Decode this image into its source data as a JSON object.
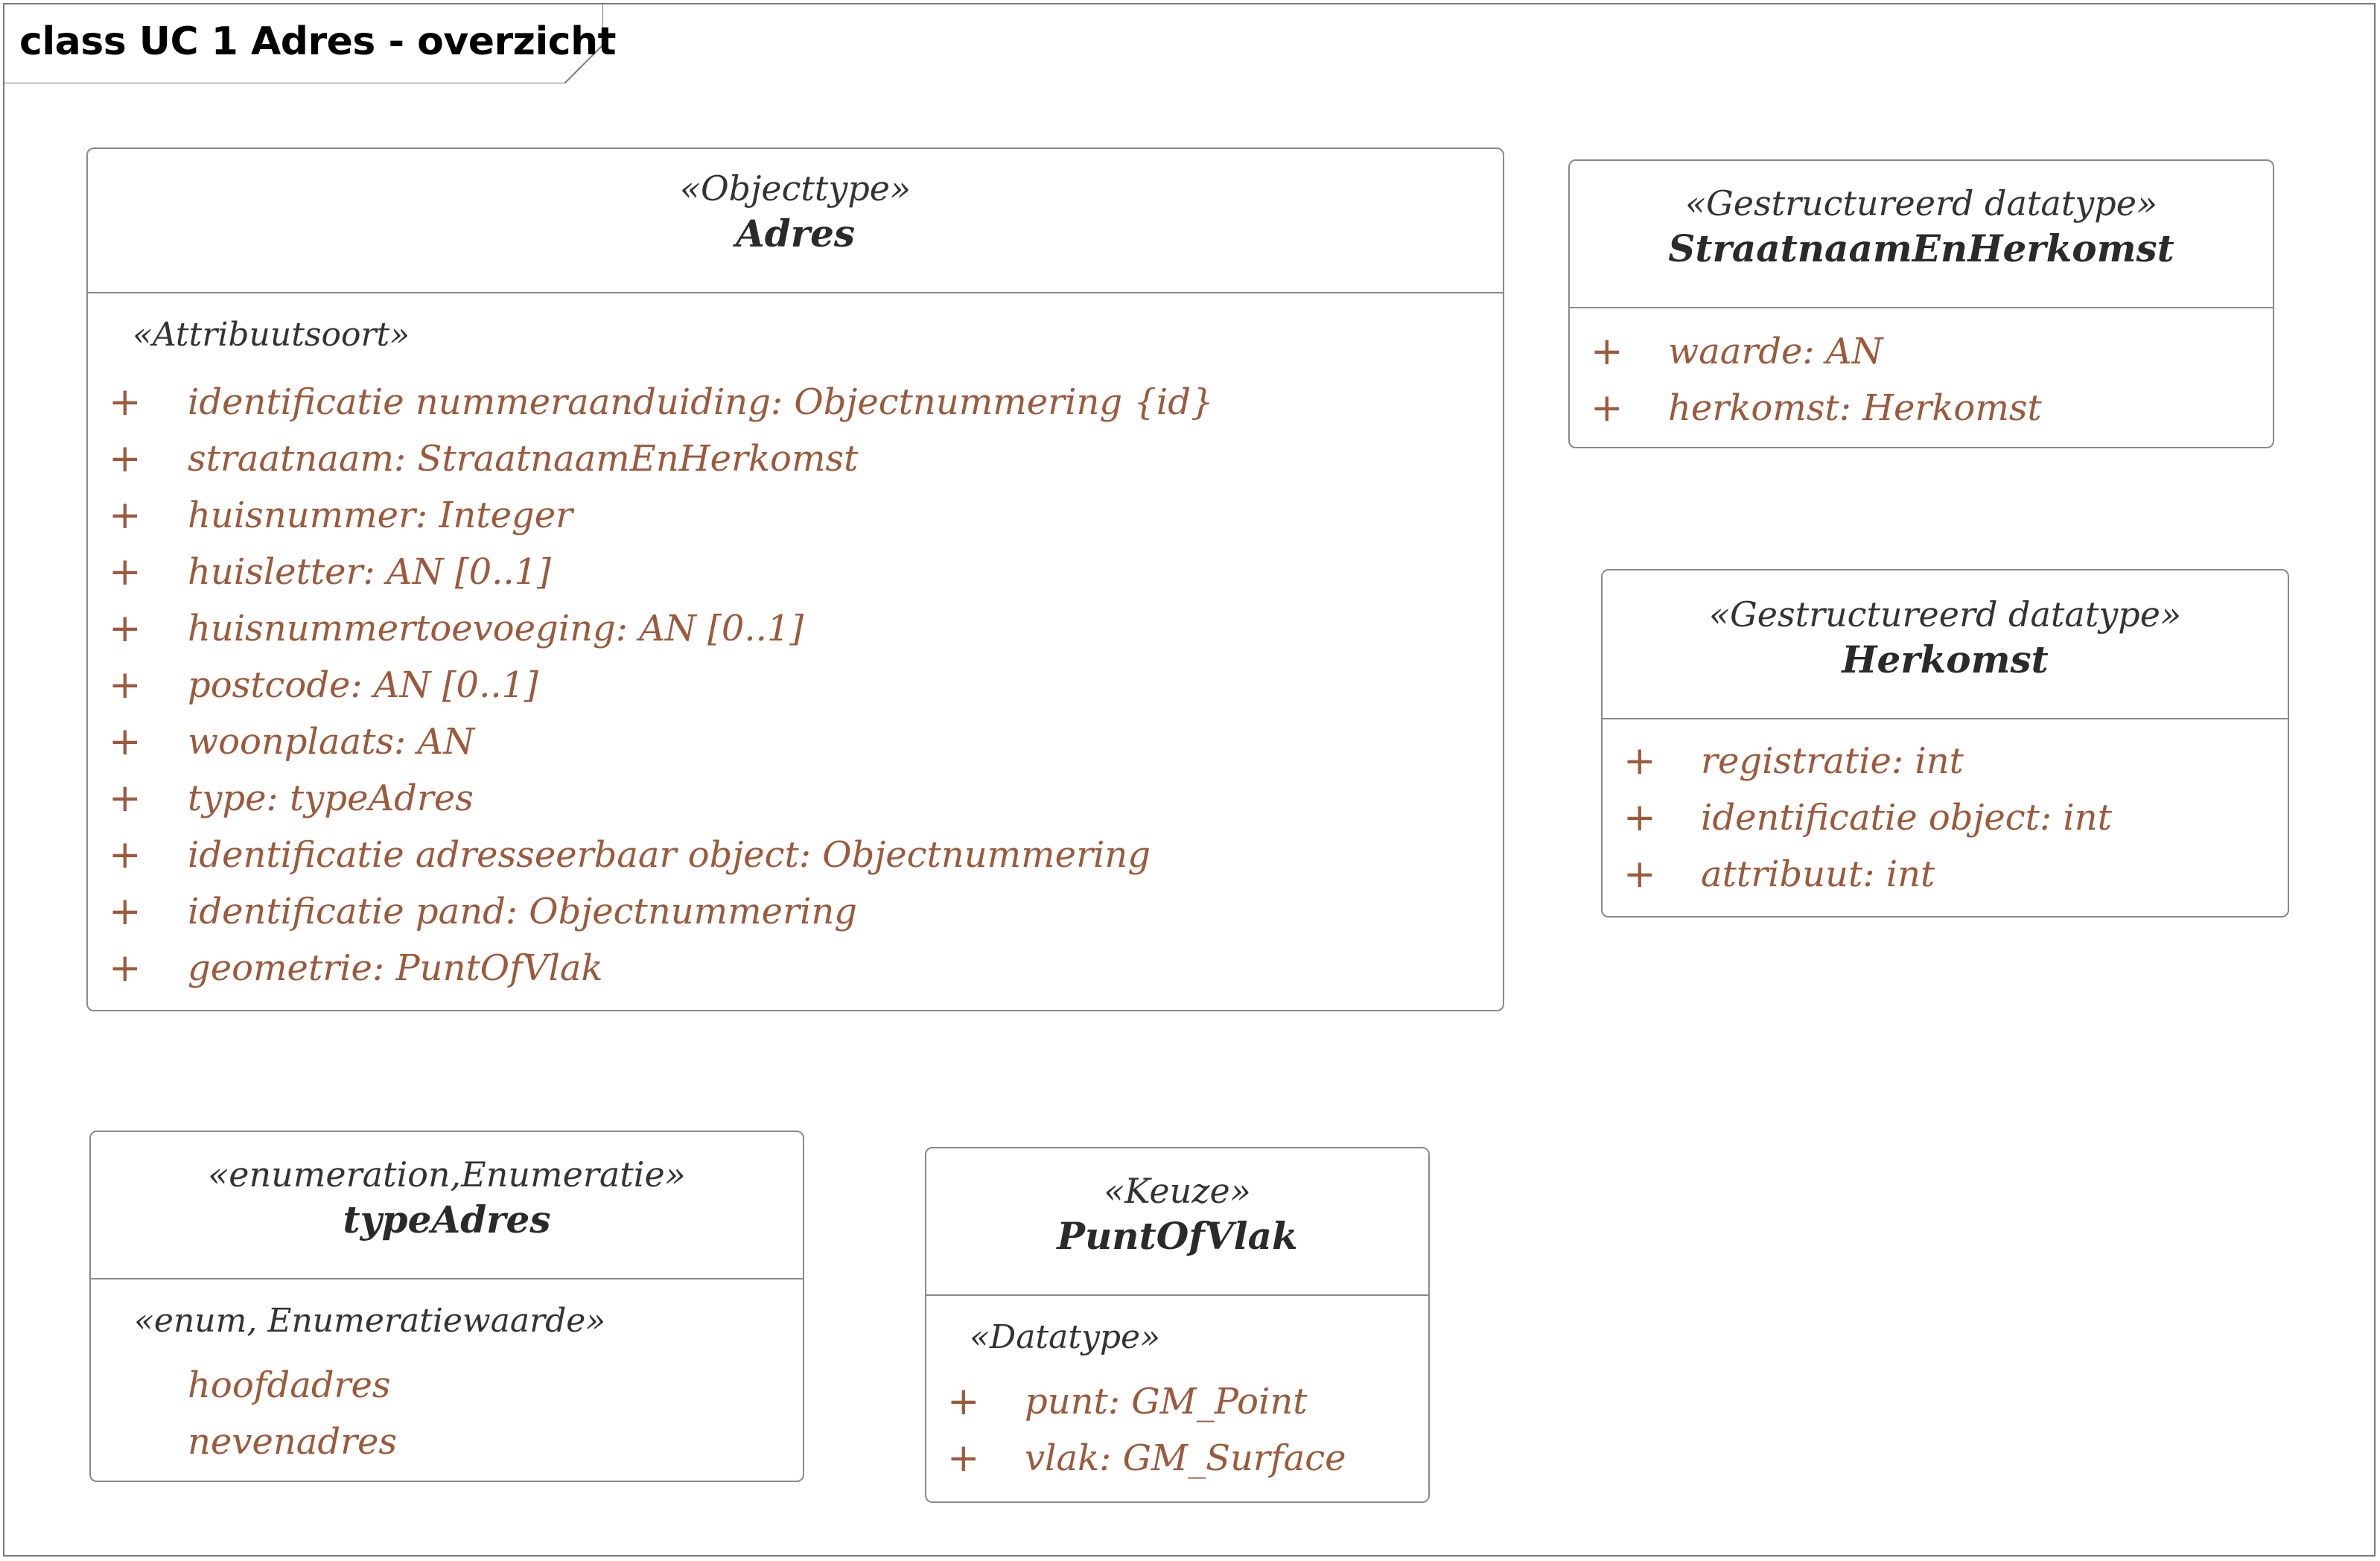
{
  "diagram": {
    "title": "class UC 1 Adres - overzicht"
  },
  "classes": {
    "adres": {
      "stereotype": "«Objecttype»",
      "name": "Adres",
      "section_stereotype": "«Attribuutsoort»",
      "attributes": [
        {
          "visibility": "+",
          "text": "identificatie nummeraanduiding: Objectnummering {id}"
        },
        {
          "visibility": "+",
          "text": "straatnaam: StraatnaamEnHerkomst"
        },
        {
          "visibility": "+",
          "text": "huisnummer: Integer"
        },
        {
          "visibility": "+",
          "text": "huisletter: AN [0..1]"
        },
        {
          "visibility": "+",
          "text": "huisnummertoevoeging: AN [0..1]"
        },
        {
          "visibility": "+",
          "text": "postcode: AN [0..1]"
        },
        {
          "visibility": "+",
          "text": "woonplaats: AN"
        },
        {
          "visibility": "+",
          "text": "type: typeAdres"
        },
        {
          "visibility": "+",
          "text": "identificatie adresseerbaar object: Objectnummering"
        },
        {
          "visibility": "+",
          "text": "identificatie pand: Objectnummering"
        },
        {
          "visibility": "+",
          "text": "geometrie: PuntOfVlak"
        }
      ]
    },
    "straatnaam_en_herkomst": {
      "stereotype": "«Gestructureerd datatype»",
      "name": "StraatnaamEnHerkomst",
      "attributes": [
        {
          "visibility": "+",
          "text": "waarde: AN"
        },
        {
          "visibility": "+",
          "text": "herkomst: Herkomst"
        }
      ]
    },
    "herkomst": {
      "stereotype": "«Gestructureerd datatype»",
      "name": "Herkomst",
      "attributes": [
        {
          "visibility": "+",
          "text": "registratie: int"
        },
        {
          "visibility": "+",
          "text": "identificatie object: int"
        },
        {
          "visibility": "+",
          "text": "attribuut: int"
        }
      ]
    },
    "type_adres": {
      "stereotype": "«enumeration,Enumeratie»",
      "name": "typeAdres",
      "section_stereotype": "«enum, Enumeratiewaarde»",
      "values": [
        "hoofdadres",
        "nevenadres"
      ]
    },
    "punt_of_vlak": {
      "stereotype": "«Keuze»",
      "name": "PuntOfVlak",
      "section_stereotype": "«Datatype»",
      "attributes": [
        {
          "visibility": "+",
          "text": "punt: GM_Point"
        },
        {
          "visibility": "+",
          "text": "vlak: GM_Surface"
        }
      ]
    }
  },
  "colors": {
    "attribute_text": "#9b5a3c",
    "border": "#8a8a8a",
    "title_text": "#000000"
  }
}
